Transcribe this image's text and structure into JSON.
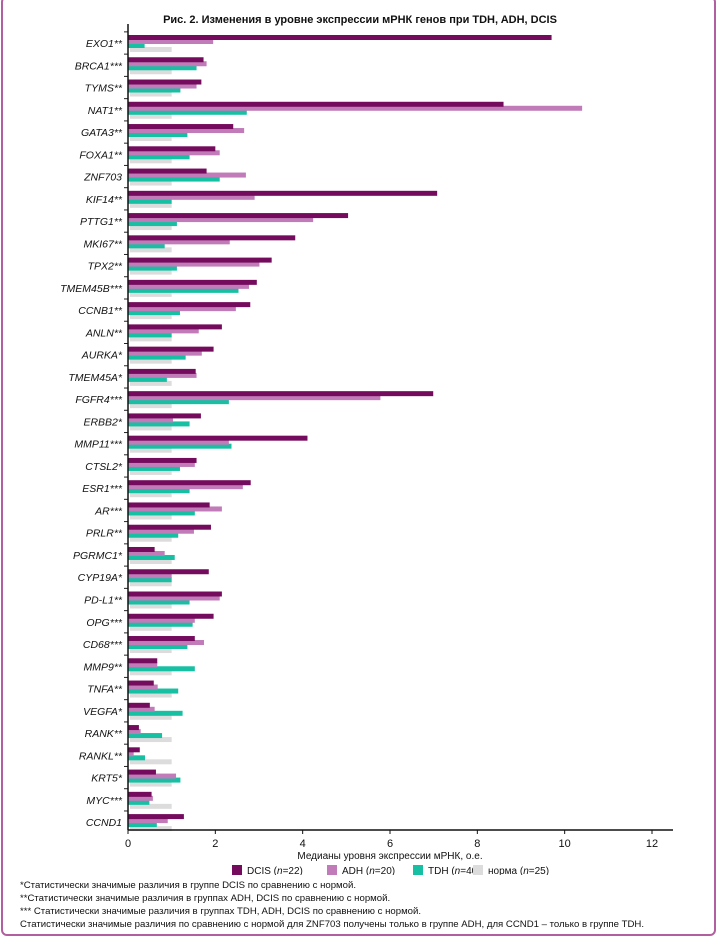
{
  "chart_data": {
    "type": "bar",
    "orientation": "horizontal",
    "title": "Рис. 2. Изменения в уровне экспрессии мРНК генов при TDH, ADH, DCIS",
    "xlabel": "Медианы уровня экспрессии мРНК, о.е.",
    "ylabel": "",
    "xlim": [
      0,
      12
    ],
    "xticks": [
      "0",
      "2",
      "4",
      "6",
      "8",
      "10",
      "12"
    ],
    "grid": false,
    "legend_position": "bottom",
    "categories": [
      "EXO1**",
      "BRCA1***",
      "TYMS**",
      "NAT1**",
      "GATA3**",
      "FOXA1**",
      "ZNF703",
      "KIF14**",
      "PTTG1**",
      "MKI67**",
      "TPX2**",
      "TMEM45B***",
      "CCNB1**",
      "ANLN**",
      "AURKA*",
      "TMEM45A*",
      "FGFR4***",
      "ERBB2*",
      "MMP11***",
      "CTSL2*",
      "ESR1***",
      "AR***",
      "PRLR**",
      "PGRMC1*",
      "CYP19A*",
      "PD-L1**",
      "OPG***",
      "CD68***",
      "MMP9**",
      "TNFA**",
      "VEGFA*",
      "RANK**",
      "RANKL**",
      "KRT5*",
      "MYC***",
      "CCND1"
    ],
    "series": [
      {
        "name": "DCIS (n=22)",
        "color": "#750b5d",
        "values": [
          9.7,
          1.73,
          1.68,
          8.6,
          2.41,
          2.0,
          1.8,
          7.08,
          5.04,
          3.83,
          3.29,
          2.95,
          2.8,
          2.15,
          1.96,
          1.55,
          6.99,
          1.67,
          4.11,
          1.57,
          2.81,
          1.87,
          1.9,
          0.61,
          1.85,
          2.15,
          1.96,
          1.53,
          0.67,
          0.59,
          0.5,
          0.25,
          0.27,
          0.64,
          0.54,
          1.28
        ]
      },
      {
        "name": "ADH (n=20)",
        "color": "#c07bb8",
        "values": [
          1.95,
          1.8,
          1.57,
          10.4,
          2.66,
          2.1,
          2.7,
          2.9,
          4.24,
          2.33,
          3.01,
          2.77,
          2.47,
          1.62,
          1.69,
          1.57,
          5.78,
          1.03,
          2.31,
          1.53,
          2.63,
          2.15,
          1.51,
          0.84,
          1.0,
          2.1,
          1.53,
          1.74,
          0.67,
          0.68,
          0.61,
          0.29,
          0.13,
          1.1,
          0.57,
          0.91
        ]
      },
      {
        "name": "TDH (n=40)",
        "color": "#17bfa3",
        "values": [
          0.38,
          1.57,
          1.2,
          2.72,
          1.36,
          1.41,
          2.1,
          1.0,
          1.12,
          0.84,
          1.12,
          2.53,
          1.19,
          1.0,
          1.32,
          0.89,
          2.31,
          1.41,
          2.37,
          1.19,
          1.41,
          1.53,
          1.15,
          1.07,
          1.0,
          1.41,
          1.48,
          1.36,
          1.53,
          1.15,
          1.25,
          0.78,
          0.39,
          1.2,
          0.49,
          0.66
        ]
      },
      {
        "name": "норма (n=25)",
        "color": "#dcdcdc",
        "values": [
          1,
          1,
          1,
          1,
          1,
          1,
          1,
          1,
          1,
          1,
          1,
          1,
          1,
          1,
          1,
          1,
          1,
          1,
          1,
          1,
          1,
          1,
          1,
          1,
          1,
          1,
          1,
          1,
          1,
          1,
          1,
          1,
          1,
          1,
          1,
          1
        ]
      }
    ],
    "legend": [
      {
        "label": "DCIS",
        "n": "22"
      },
      {
        "label": "ADH",
        "n": "20"
      },
      {
        "label": "TDH",
        "n": "40"
      },
      {
        "label": "норма",
        "n": "25"
      }
    ]
  },
  "footnotes": [
    "*Статистически значимые различия в группе DCIS по сравнению с нормой.",
    "**Статистически значимые различия в группах ADH, DCIS по сравнению с нормой.",
    "*** Статистически значимые различия в группах TDH, ADH, DCIS по сравнению с нормой.",
    "Статистически значимые различия по сравнению с нормой для ZNF703 получены только в группе ADH, для CCND1 – только в группе TDH."
  ]
}
